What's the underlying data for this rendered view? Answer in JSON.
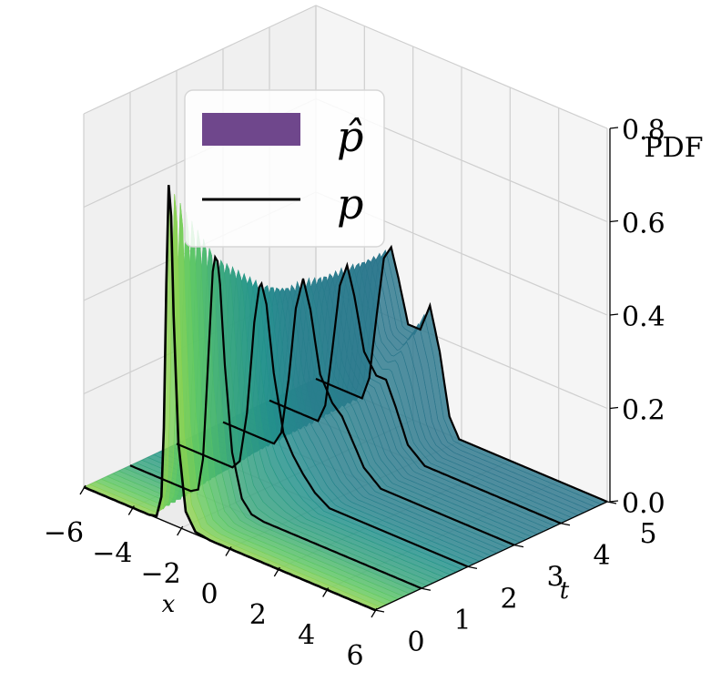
{
  "chart_data": {
    "type": "surface3d",
    "title": "",
    "xlabel": "x",
    "ylabel": "t",
    "zlabel": "PDF",
    "xlim": [
      -6,
      6
    ],
    "tlim": [
      0,
      5
    ],
    "zlim": [
      0,
      0.8
    ],
    "x_ticks": [
      "−6",
      "−4",
      "−2",
      "0",
      "2",
      "4",
      "6"
    ],
    "t_ticks": [
      "0",
      "1",
      "2",
      "3",
      "4",
      "5"
    ],
    "z_ticks": [
      "0.0",
      "0.2",
      "0.4",
      "0.6",
      "0.8"
    ],
    "legend": {
      "placement": "upper-left",
      "entries": [
        {
          "label": "p̂",
          "kind": "surface",
          "color": "#5b2d7c"
        },
        {
          "label": "p",
          "kind": "line",
          "color": "#000000"
        }
      ]
    },
    "colormap": "viridis",
    "slices": [
      {
        "t": 0.0,
        "x": [
          -6,
          -3.3,
          -3.0,
          -2.8,
          -2.7,
          -2.62,
          -2.55,
          -2.48,
          -2.4,
          -2.3,
          -2.1,
          -1.8,
          -1.4,
          -0.8,
          0,
          1,
          3,
          6
        ],
        "pdf": [
          0,
          0,
          0.004,
          0.05,
          0.2,
          0.45,
          0.66,
          0.75,
          0.66,
          0.45,
          0.18,
          0.04,
          0.005,
          0,
          0,
          0,
          0,
          0
        ]
      },
      {
        "t": 1.0,
        "x": [
          -6,
          -3.5,
          -3.2,
          -3.0,
          -2.8,
          -2.6,
          -2.45,
          -2.3,
          -2.1,
          -1.8,
          -1.4,
          -1.0,
          -0.5,
          0,
          6
        ],
        "pdf": [
          0,
          0,
          0.01,
          0.08,
          0.28,
          0.49,
          0.54,
          0.47,
          0.3,
          0.12,
          0.03,
          0.005,
          0,
          0,
          0
        ]
      },
      {
        "t": 2.0,
        "x": [
          -6,
          -3.7,
          -3.4,
          -3.1,
          -2.8,
          -2.55,
          -2.3,
          -2.0,
          -1.6,
          -1.2,
          -0.8,
          -0.3,
          0.3,
          6
        ],
        "pdf": [
          0,
          0,
          0.02,
          0.13,
          0.33,
          0.43,
          0.38,
          0.24,
          0.12,
          0.08,
          0.05,
          0.02,
          0,
          0
        ]
      },
      {
        "t": 3.0,
        "x": [
          -6,
          -3.9,
          -3.6,
          -3.3,
          -3.0,
          -2.7,
          -2.4,
          -2.0,
          -1.5,
          -1.1,
          -0.7,
          -0.2,
          0.5,
          6
        ],
        "pdf": [
          0,
          0,
          0.03,
          0.15,
          0.31,
          0.38,
          0.32,
          0.19,
          0.14,
          0.12,
          0.08,
          0.03,
          0,
          0
        ]
      },
      {
        "t": 4.0,
        "x": [
          -6,
          -4.0,
          -3.7,
          -3.4,
          -3.1,
          -2.8,
          -2.5,
          -2.1,
          -1.6,
          -1.2,
          -0.8,
          -0.3,
          0.4,
          6
        ],
        "pdf": [
          0,
          0,
          0.04,
          0.17,
          0.31,
          0.36,
          0.3,
          0.19,
          0.15,
          0.15,
          0.1,
          0.03,
          0,
          0
        ]
      },
      {
        "t": 5.0,
        "x": [
          -6,
          -4.1,
          -3.8,
          -3.5,
          -3.2,
          -2.9,
          -2.6,
          -2.2,
          -1.7,
          -1.3,
          -0.9,
          -0.5,
          -0.1,
          6
        ],
        "pdf": [
          0,
          0,
          0.05,
          0.19,
          0.32,
          0.35,
          0.29,
          0.2,
          0.2,
          0.26,
          0.17,
          0.04,
          0,
          0
        ]
      }
    ]
  }
}
